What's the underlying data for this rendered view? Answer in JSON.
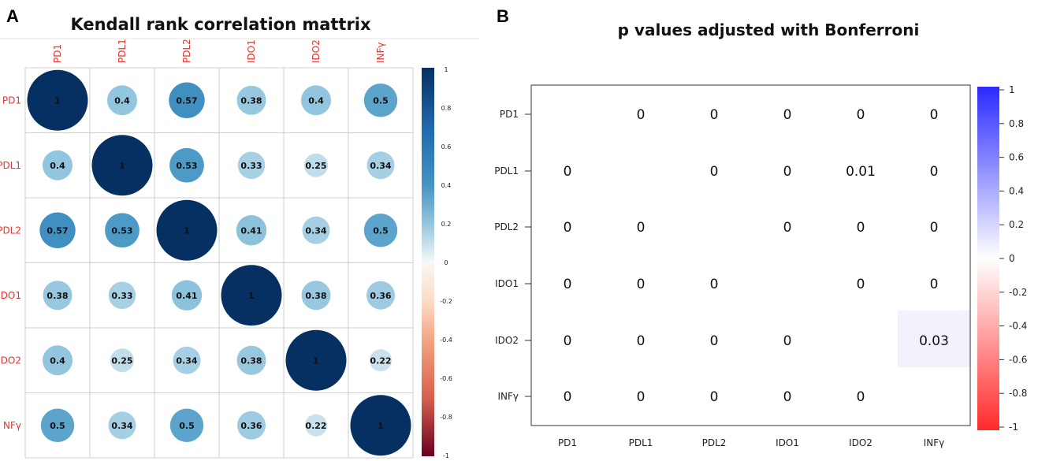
{
  "panels": {
    "a": {
      "letter": "A",
      "title": "Kendall rank correlation mattrix"
    },
    "b": {
      "letter": "B",
      "title": "p values adjusted with Bonferroni"
    }
  },
  "chart_data": [
    {
      "type": "heatmap",
      "style": "circle correlation plot",
      "title": "Kendall rank correlation mattrix",
      "labels": [
        "PD1",
        "PDL1",
        "PDL2",
        "IDO1",
        "IDO2",
        "INFγ"
      ],
      "row_labels_shown": [
        "PD1",
        "PDL1",
        "PDL2",
        "IDO1",
        "IDO2",
        "NFγ"
      ],
      "values": [
        [
          1,
          0.4,
          0.57,
          0.38,
          0.4,
          0.5
        ],
        [
          0.4,
          1,
          0.53,
          0.33,
          0.25,
          0.34
        ],
        [
          0.57,
          0.53,
          1,
          0.41,
          0.34,
          0.5
        ],
        [
          0.38,
          0.33,
          0.41,
          1,
          0.38,
          0.36
        ],
        [
          0.4,
          0.25,
          0.34,
          0.38,
          1,
          0.22
        ],
        [
          0.5,
          0.34,
          0.5,
          0.36,
          0.22,
          1
        ]
      ],
      "colorbar": {
        "range": [
          -1,
          1
        ],
        "ticks": [
          1,
          0.8,
          0.6,
          0.4,
          0.2,
          0,
          -0.2,
          -0.4,
          -0.6,
          -0.8,
          -1
        ],
        "colors": {
          "neg": "#67001f",
          "mid": "#f7f7f7",
          "pos": "#053061"
        }
      },
      "grid": true
    },
    {
      "type": "table",
      "title": "p values adjusted with Bonferroni",
      "labels": [
        "PD1",
        "PDL1",
        "PDL2",
        "IDO1",
        "IDO2",
        "INFγ"
      ],
      "values": [
        [
          null,
          "0",
          "0",
          "0",
          "0",
          "0"
        ],
        [
          "0",
          null,
          "0",
          "0",
          "0.01",
          "0"
        ],
        [
          "0",
          "0",
          null,
          "0",
          "0",
          "0"
        ],
        [
          "0",
          "0",
          "0",
          null,
          "0",
          "0"
        ],
        [
          "0",
          "0",
          "0",
          "0",
          null,
          "0.03"
        ],
        [
          "0",
          "0",
          "0",
          "0",
          "0",
          null
        ]
      ],
      "shaded_cells": [
        [
          4,
          5
        ]
      ],
      "colorbar": {
        "range": [
          -1,
          1
        ],
        "ticks": [
          "1",
          "0.8",
          "0.6",
          "0.4",
          "0.2",
          "0",
          "-0.2",
          "-0.4",
          "-0.6",
          "-0.8",
          "-1"
        ],
        "colors": {
          "neg": "#ff2a2a",
          "mid": "#ffffff",
          "pos": "#2a2aff"
        }
      },
      "cell_shade_color": "#f2f2fd"
    }
  ]
}
